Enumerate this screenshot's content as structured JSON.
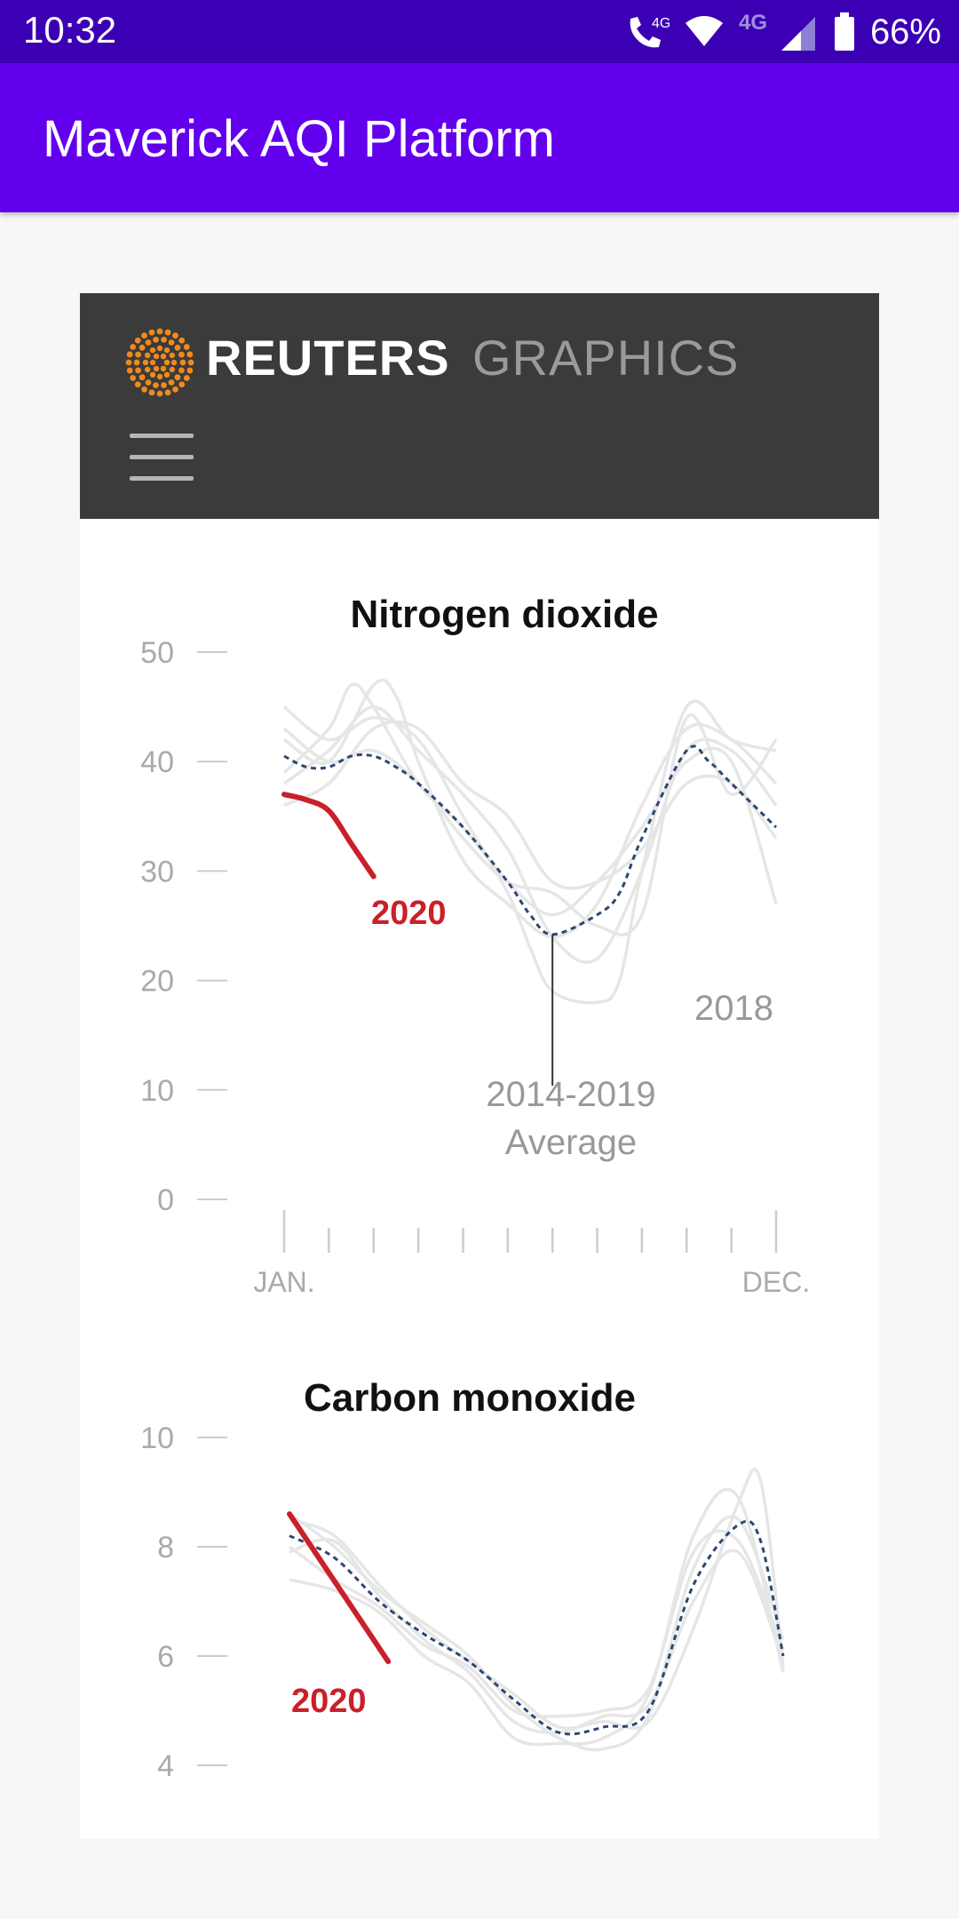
{
  "status_bar": {
    "time": "10:32",
    "battery_percent": "66%",
    "network_labels": [
      "4G",
      "4G"
    ],
    "icons": [
      "call-wifi-icon",
      "wifi-icon",
      "cell-signal-icon",
      "battery-icon"
    ]
  },
  "app_bar": {
    "title": "Maverick AQI Platform"
  },
  "reuters": {
    "brand": "REUTERS",
    "section": "GRAPHICS",
    "menu_icon": "hamburger-menu-icon"
  },
  "colors": {
    "status_bar": "#3c00b4",
    "app_bar": "#6200ee",
    "header_bg": "#3b3b3b",
    "highlight_2020": "#c9202a",
    "average_line": "#2b4872",
    "history_lines": "#e6e6e6"
  },
  "chart_data": [
    {
      "type": "line",
      "title": "Nitrogen dioxide",
      "ylim": [
        0,
        50
      ],
      "yticks": [
        0,
        10,
        20,
        30,
        40,
        50
      ],
      "x_start_label": "JAN.",
      "x_end_label": "DEC.",
      "x_range": [
        1,
        12
      ],
      "grid": false,
      "annotations": {
        "series_2020": "2020",
        "year_2018": "2018",
        "avg_line1": "2014-2019",
        "avg_line2": "Average"
      },
      "series": [
        {
          "name": "2020",
          "role": "highlight",
          "x": [
            1,
            1.5,
            2,
            2.5,
            3
          ],
          "values": [
            37,
            36.5,
            35.5,
            32.5,
            29.5
          ]
        },
        {
          "name": "2014-2019 Average",
          "role": "average",
          "x": [
            1,
            1.5,
            2,
            2.5,
            3,
            3.5,
            4,
            5,
            6,
            6.5,
            7,
            8,
            8.5,
            9,
            10,
            10.5,
            11,
            12
          ],
          "values": [
            40.5,
            39.5,
            39.5,
            40.5,
            40.5,
            39.5,
            38,
            34,
            29,
            26,
            24.2,
            26,
            28,
            33,
            41,
            40,
            38,
            34
          ]
        },
        {
          "name": "2018",
          "role": "history",
          "x": [
            1,
            2,
            3,
            4,
            5,
            6,
            6.5,
            7,
            8,
            8.5,
            9,
            10,
            11,
            12
          ],
          "values": [
            45,
            42,
            44,
            42,
            35,
            28,
            23,
            19,
            18,
            20,
            30,
            45,
            42,
            41
          ]
        },
        {
          "role": "history",
          "x": [
            1,
            2,
            3,
            3.5,
            4,
            5,
            6,
            7,
            8,
            9,
            10,
            11,
            12
          ],
          "values": [
            42,
            40,
            47,
            46,
            40,
            31,
            27,
            24,
            27,
            36,
            43,
            42,
            38
          ]
        },
        {
          "role": "history",
          "x": [
            1,
            2,
            2.5,
            3,
            4,
            5,
            6,
            7,
            8,
            9,
            10,
            11,
            12
          ],
          "values": [
            39,
            43,
            47,
            45,
            38,
            34,
            29,
            26,
            29,
            34,
            40,
            40,
            27
          ]
        },
        {
          "role": "history",
          "x": [
            1,
            2,
            3,
            4,
            5,
            6,
            7,
            8,
            9,
            10,
            11,
            12
          ],
          "values": [
            38,
            41,
            45,
            41,
            37,
            32,
            24,
            22,
            30,
            41,
            41,
            36
          ]
        },
        {
          "role": "history",
          "x": [
            1,
            2,
            3,
            4,
            5,
            6,
            7,
            8,
            9,
            10,
            11,
            12
          ],
          "values": [
            36,
            38,
            43,
            43,
            38,
            35,
            29,
            29,
            32,
            38,
            38,
            33
          ]
        },
        {
          "role": "history",
          "x": [
            1,
            2,
            3,
            4,
            5,
            6,
            7,
            8,
            9,
            10,
            11,
            12
          ],
          "values": [
            43,
            40,
            41,
            38,
            33,
            29,
            28,
            25,
            26,
            44,
            37,
            42
          ]
        }
      ]
    },
    {
      "type": "line",
      "title": "Carbon monoxide",
      "ylim": [
        4,
        10
      ],
      "yticks": [
        4,
        6,
        8,
        10
      ],
      "x_range": [
        1,
        12
      ],
      "grid": false,
      "annotations": {
        "series_2020": "2020"
      },
      "series": [
        {
          "name": "2020",
          "role": "highlight",
          "x": [
            1,
            3.2
          ],
          "values": [
            8.6,
            5.9
          ]
        },
        {
          "name": "2014-2019 Average",
          "role": "average",
          "x": [
            1,
            2,
            3,
            4,
            5,
            6,
            7,
            8,
            9,
            10,
            11,
            11.5,
            12
          ],
          "values": [
            8.2,
            7.8,
            7.0,
            6.4,
            5.9,
            5.2,
            4.6,
            4.7,
            5.0,
            7.3,
            8.4,
            8.1,
            6.0
          ]
        },
        {
          "role": "history",
          "x": [
            1,
            2,
            3,
            4,
            5,
            6,
            7,
            8,
            9,
            10,
            11,
            11.5,
            12
          ],
          "values": [
            8.5,
            8.2,
            7.3,
            6.5,
            5.9,
            5.3,
            4.7,
            4.8,
            4.8,
            6.5,
            8.8,
            9.2,
            5.8
          ]
        },
        {
          "role": "history",
          "x": [
            1,
            2,
            3,
            4,
            5,
            6,
            7,
            8,
            9,
            10,
            11,
            12
          ],
          "values": [
            8.0,
            7.4,
            6.9,
            6.2,
            5.8,
            5.0,
            4.9,
            5.0,
            5.4,
            7.9,
            8.1,
            6.1
          ]
        },
        {
          "role": "history",
          "x": [
            1,
            2,
            3,
            4,
            5,
            6,
            7,
            8,
            9,
            10,
            11,
            12
          ],
          "values": [
            7.4,
            7.2,
            6.8,
            6.0,
            5.5,
            4.5,
            4.4,
            4.5,
            5.3,
            8.2,
            8.9,
            5.7
          ]
        },
        {
          "role": "history",
          "x": [
            1,
            2,
            3,
            4,
            5,
            6,
            7,
            8,
            9,
            10,
            11,
            12
          ],
          "values": [
            8.6,
            8.0,
            7.2,
            6.6,
            6.0,
            5.1,
            4.5,
            4.3,
            4.9,
            7.6,
            8.5,
            6.3
          ]
        },
        {
          "role": "history",
          "x": [
            1,
            2,
            3,
            4,
            5,
            6,
            7,
            8,
            9,
            10,
            11,
            12
          ],
          "values": [
            7.9,
            8.1,
            7.1,
            6.3,
            5.7,
            4.8,
            4.6,
            4.9,
            5.1,
            7.0,
            7.9,
            5.9
          ]
        }
      ]
    }
  ]
}
